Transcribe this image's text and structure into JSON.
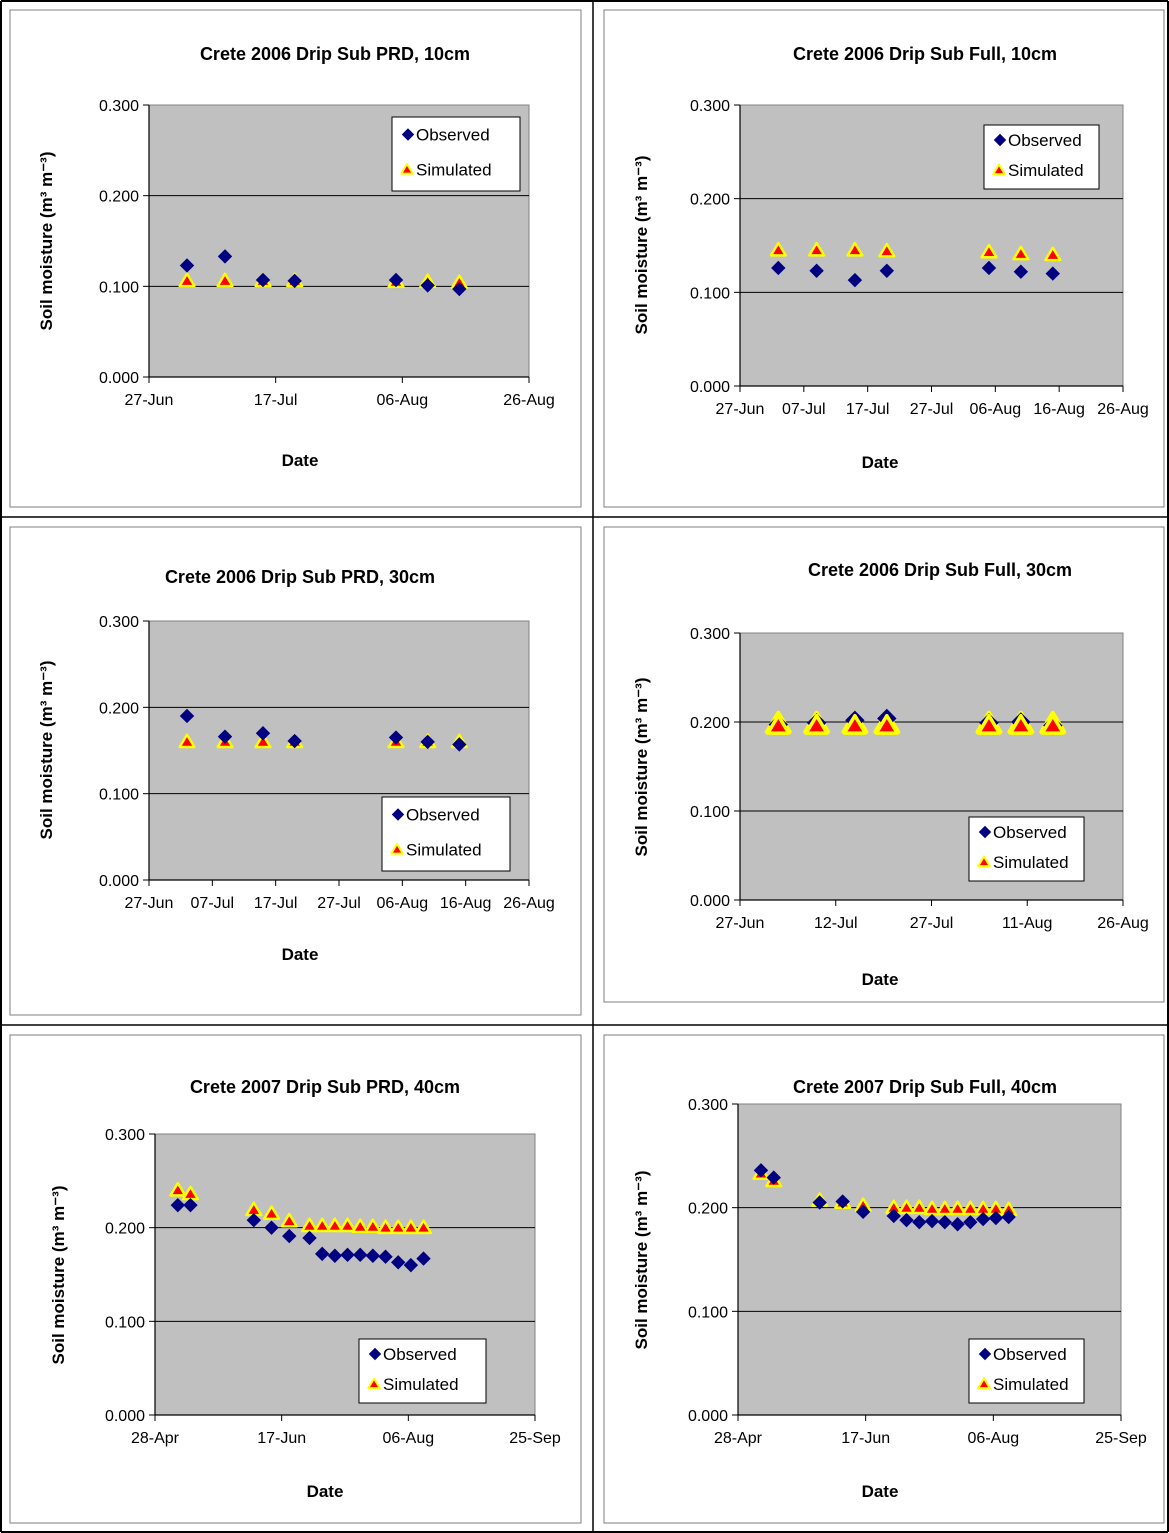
{
  "colors": {
    "plot_bg": "#c0c0c0",
    "observed": "#000080",
    "simulated_fill": "#ff0000",
    "simulated_edge": "#ffff00",
    "grid": "#000000"
  },
  "chart_data": [
    {
      "type": "scatter",
      "title": "Crete 2006 Drip Sub PRD, 10cm",
      "xlabel": "Date",
      "ylabel": "Soil moisture (m³ m⁻³)",
      "ylim": [
        0,
        0.3
      ],
      "xlim": [
        "2006-06-27",
        "2006-08-26"
      ],
      "xticks": [
        {
          "date": "2006-06-27",
          "label": "27-Jun"
        },
        {
          "date": "2006-07-17",
          "label": "17-Jul"
        },
        {
          "date": "2006-08-06",
          "label": "06-Aug"
        },
        {
          "date": "2006-08-26",
          "label": "26-Aug"
        }
      ],
      "yticks": [
        "0.000",
        "0.100",
        "0.200",
        "0.300"
      ],
      "grid": "horizontal",
      "legend_position": "top-right",
      "series": [
        {
          "name": "Observed",
          "x": [
            "2006-07-03",
            "2006-07-09",
            "2006-07-15",
            "2006-07-20",
            "2006-08-05",
            "2006-08-10",
            "2006-08-15"
          ],
          "y": [
            0.123,
            0.133,
            0.107,
            0.106,
            0.107,
            0.101,
            0.097
          ]
        },
        {
          "name": "Simulated",
          "x": [
            "2006-07-03",
            "2006-07-09",
            "2006-07-15",
            "2006-07-20",
            "2006-08-05",
            "2006-08-10",
            "2006-08-15"
          ],
          "y": [
            0.105,
            0.105,
            0.105,
            0.105,
            0.104,
            0.104,
            0.103
          ]
        }
      ]
    },
    {
      "type": "scatter",
      "title": "Crete 2006 Drip Sub Full, 10cm",
      "xlabel": "Date",
      "ylabel": "Soil moisture (m³ m⁻³)",
      "ylim": [
        0,
        0.3
      ],
      "xlim": [
        "2006-06-27",
        "2006-08-26"
      ],
      "xticks": [
        {
          "date": "2006-06-27",
          "label": "27-Jun"
        },
        {
          "date": "2006-07-07",
          "label": "07-Jul"
        },
        {
          "date": "2006-07-17",
          "label": "17-Jul"
        },
        {
          "date": "2006-07-27",
          "label": "27-Jul"
        },
        {
          "date": "2006-08-06",
          "label": "06-Aug"
        },
        {
          "date": "2006-08-16",
          "label": "16-Aug"
        },
        {
          "date": "2006-08-26",
          "label": "26-Aug"
        }
      ],
      "yticks": [
        "0.000",
        "0.100",
        "0.200",
        "0.300"
      ],
      "grid": "horizontal",
      "legend_position": "top-right",
      "series": [
        {
          "name": "Observed",
          "x": [
            "2006-07-03",
            "2006-07-09",
            "2006-07-15",
            "2006-07-20",
            "2006-08-05",
            "2006-08-10",
            "2006-08-15"
          ],
          "y": [
            0.126,
            0.123,
            0.113,
            0.123,
            0.126,
            0.122,
            0.12
          ]
        },
        {
          "name": "Simulated",
          "x": [
            "2006-07-03",
            "2006-07-09",
            "2006-07-15",
            "2006-07-20",
            "2006-08-05",
            "2006-08-10",
            "2006-08-15"
          ],
          "y": [
            0.144,
            0.144,
            0.144,
            0.143,
            0.142,
            0.14,
            0.139
          ]
        }
      ]
    },
    {
      "type": "scatter",
      "title": "Crete 2006 Drip Sub PRD, 30cm",
      "xlabel": "Date",
      "ylabel": "Soil moisture (m³ m⁻³)",
      "ylim": [
        0,
        0.3
      ],
      "xlim": [
        "2006-06-27",
        "2006-08-26"
      ],
      "xticks": [
        {
          "date": "2006-06-27",
          "label": "27-Jun"
        },
        {
          "date": "2006-07-07",
          "label": "07-Jul"
        },
        {
          "date": "2006-07-17",
          "label": "17-Jul"
        },
        {
          "date": "2006-07-27",
          "label": "27-Jul"
        },
        {
          "date": "2006-08-06",
          "label": "06-Aug"
        },
        {
          "date": "2006-08-16",
          "label": "16-Aug"
        },
        {
          "date": "2006-08-26",
          "label": "26-Aug"
        }
      ],
      "yticks": [
        "0.000",
        "0.100",
        "0.200",
        "0.300"
      ],
      "grid": "horizontal",
      "legend_position": "bottom-right",
      "series": [
        {
          "name": "Observed",
          "x": [
            "2006-07-03",
            "2006-07-09",
            "2006-07-15",
            "2006-07-20",
            "2006-08-05",
            "2006-08-10",
            "2006-08-15"
          ],
          "y": [
            0.19,
            0.166,
            0.17,
            0.161,
            0.165,
            0.16,
            0.157
          ]
        },
        {
          "name": "Simulated",
          "x": [
            "2006-07-03",
            "2006-07-09",
            "2006-07-15",
            "2006-07-20",
            "2006-08-05",
            "2006-08-10",
            "2006-08-15"
          ],
          "y": [
            0.159,
            0.159,
            0.159,
            0.159,
            0.159,
            0.159,
            0.159
          ]
        }
      ]
    },
    {
      "type": "scatter",
      "title": "Crete 2006 Drip Sub Full, 30cm",
      "xlabel": "Date",
      "ylabel": "Soil moisture (m³ m⁻³)",
      "ylim": [
        0,
        0.3
      ],
      "xlim": [
        "2006-06-27",
        "2006-08-26"
      ],
      "xticks": [
        {
          "date": "2006-06-27",
          "label": "27-Jun"
        },
        {
          "date": "2006-07-12",
          "label": "12-Jul"
        },
        {
          "date": "2006-07-27",
          "label": "27-Jul"
        },
        {
          "date": "2006-08-11",
          "label": "11-Aug"
        },
        {
          "date": "2006-08-26",
          "label": "26-Aug"
        }
      ],
      "yticks": [
        "0.000",
        "0.100",
        "0.200",
        "0.300"
      ],
      "grid": "horizontal",
      "legend_position": "bottom-right",
      "series": [
        {
          "name": "Observed",
          "x": [
            "2006-07-03",
            "2006-07-09",
            "2006-07-15",
            "2006-07-20",
            "2006-08-05",
            "2006-08-10",
            "2006-08-15"
          ],
          "y": [
            0.197,
            0.199,
            0.202,
            0.204,
            0.199,
            0.2,
            0.196
          ]
        },
        {
          "name": "Simulated",
          "x": [
            "2006-07-03",
            "2006-07-09",
            "2006-07-15",
            "2006-07-20",
            "2006-08-05",
            "2006-08-10",
            "2006-08-15"
          ],
          "y": [
            0.197,
            0.197,
            0.197,
            0.197,
            0.197,
            0.197,
            0.197
          ]
        }
      ]
    },
    {
      "type": "scatter",
      "title": "Crete 2007 Drip Sub PRD, 40cm",
      "xlabel": "Date",
      "ylabel": "Soil moisture (m³ m⁻³)",
      "ylim": [
        0,
        0.3
      ],
      "xlim": [
        "2007-04-28",
        "2007-09-25"
      ],
      "xticks": [
        {
          "date": "2007-04-28",
          "label": "28-Apr"
        },
        {
          "date": "2007-06-17",
          "label": "17-Jun"
        },
        {
          "date": "2007-08-06",
          "label": "06-Aug"
        },
        {
          "date": "2007-09-25",
          "label": "25-Sep"
        }
      ],
      "yticks": [
        "0.000",
        "0.100",
        "0.200",
        "0.300"
      ],
      "grid": "horizontal",
      "legend_position": "bottom-right",
      "series": [
        {
          "name": "Observed",
          "x": [
            "2007-05-07",
            "2007-05-12",
            "2007-06-06",
            "2007-06-13",
            "2007-06-20",
            "2007-06-28",
            "2007-07-03",
            "2007-07-08",
            "2007-07-13",
            "2007-07-18",
            "2007-07-23",
            "2007-07-28",
            "2007-08-02",
            "2007-08-07",
            "2007-08-12"
          ],
          "y": [
            0.224,
            0.224,
            0.208,
            0.2,
            0.191,
            0.189,
            0.172,
            0.17,
            0.171,
            0.171,
            0.17,
            0.169,
            0.163,
            0.16,
            0.167
          ]
        },
        {
          "name": "Simulated",
          "x": [
            "2007-05-07",
            "2007-05-12",
            "2007-06-06",
            "2007-06-13",
            "2007-06-20",
            "2007-06-28",
            "2007-07-03",
            "2007-07-08",
            "2007-07-13",
            "2007-07-18",
            "2007-07-23",
            "2007-07-28",
            "2007-08-02",
            "2007-08-07",
            "2007-08-12"
          ],
          "y": [
            0.239,
            0.235,
            0.218,
            0.214,
            0.206,
            0.201,
            0.201,
            0.201,
            0.201,
            0.2,
            0.2,
            0.199,
            0.199,
            0.199,
            0.199
          ]
        }
      ]
    },
    {
      "type": "scatter",
      "title": "Crete 2007 Drip Sub Full, 40cm",
      "xlabel": "Date",
      "ylabel": "Soil moisture (m³ m⁻³)",
      "ylim": [
        0,
        0.3
      ],
      "xlim": [
        "2007-04-28",
        "2007-09-25"
      ],
      "xticks": [
        {
          "date": "2007-04-28",
          "label": "28-Apr"
        },
        {
          "date": "2007-06-17",
          "label": "17-Jun"
        },
        {
          "date": "2007-08-06",
          "label": "06-Aug"
        },
        {
          "date": "2007-09-25",
          "label": "25-Sep"
        }
      ],
      "yticks": [
        "0.000",
        "0.100",
        "0.200",
        "0.300"
      ],
      "grid": "horizontal",
      "legend_position": "bottom-right",
      "series": [
        {
          "name": "Observed",
          "x": [
            "2007-05-07",
            "2007-05-12",
            "2007-05-30",
            "2007-06-08",
            "2007-06-16",
            "2007-06-28",
            "2007-07-03",
            "2007-07-08",
            "2007-07-13",
            "2007-07-18",
            "2007-07-23",
            "2007-07-28",
            "2007-08-02",
            "2007-08-07",
            "2007-08-12"
          ],
          "y": [
            0.236,
            0.229,
            0.205,
            0.206,
            0.196,
            0.192,
            0.188,
            0.186,
            0.187,
            0.186,
            0.184,
            0.186,
            0.189,
            0.19,
            0.191
          ]
        },
        {
          "name": "Simulated",
          "x": [
            "2007-05-07",
            "2007-05-12",
            "2007-05-30",
            "2007-06-08",
            "2007-06-16",
            "2007-06-28",
            "2007-07-03",
            "2007-07-08",
            "2007-07-13",
            "2007-07-18",
            "2007-07-23",
            "2007-07-28",
            "2007-08-02",
            "2007-08-07",
            "2007-08-12"
          ],
          "y": [
            0.232,
            0.225,
            0.206,
            0.204,
            0.201,
            0.199,
            0.199,
            0.199,
            0.198,
            0.198,
            0.198,
            0.198,
            0.198,
            0.198,
            0.197
          ]
        }
      ]
    }
  ]
}
